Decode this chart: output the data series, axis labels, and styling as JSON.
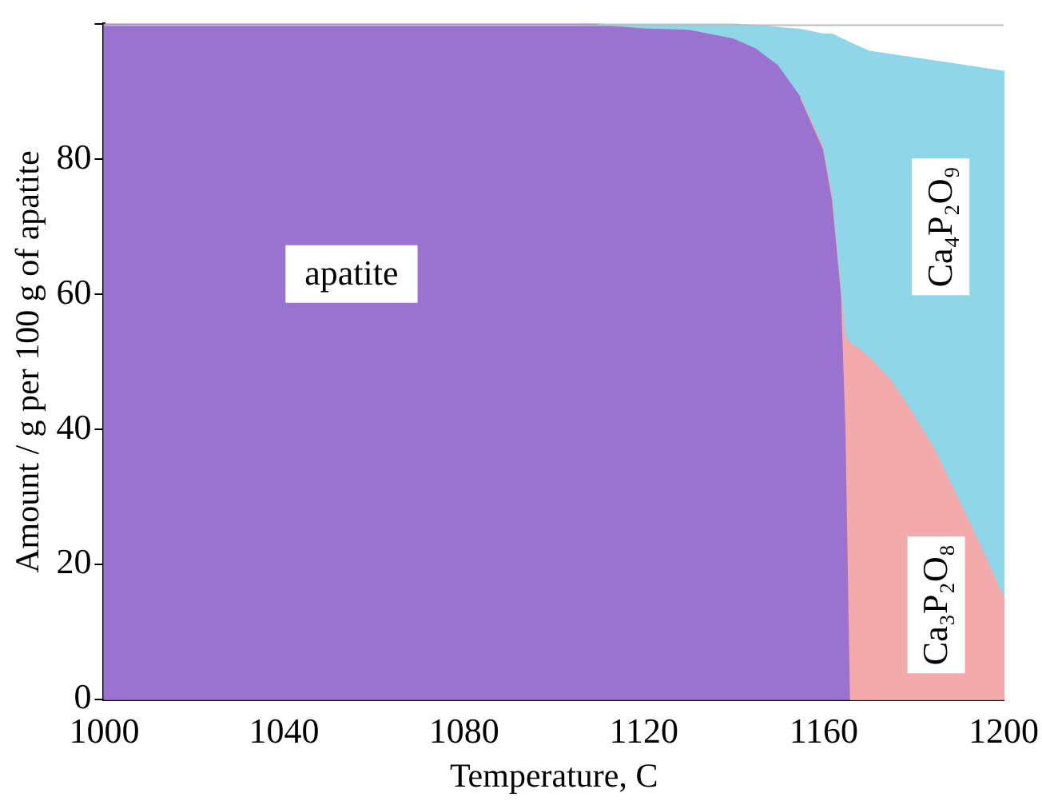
{
  "chart_data": {
    "type": "area",
    "stacked": true,
    "xlabel": "Temperature, C",
    "ylabel": "Amount / g per 100 g of apatite",
    "x": [
      1000,
      1020,
      1040,
      1060,
      1080,
      1100,
      1110,
      1120,
      1130,
      1140,
      1145,
      1150,
      1155,
      1160,
      1162,
      1164,
      1165,
      1166,
      1170,
      1175,
      1180,
      1185,
      1190,
      1195,
      1200
    ],
    "xlim": [
      1000,
      1200
    ],
    "xticks": [
      1000,
      1040,
      1080,
      1120,
      1160,
      1200
    ],
    "ylim": [
      0,
      100
    ],
    "yticks": [
      0,
      20,
      40,
      60,
      80,
      {
        "value": 100,
        "label": null
      }
    ],
    "grid": false,
    "legend": false,
    "series": [
      {
        "name": "apatite",
        "color": "#9a72cf",
        "values": [
          100,
          100,
          100,
          100,
          100,
          100,
          100,
          99.5,
          99.3,
          98,
          96.5,
          94,
          89,
          81.5,
          74,
          60,
          40,
          0,
          0,
          0,
          0,
          0,
          0,
          0,
          0
        ]
      },
      {
        "name": "Ca₃P₂O₈",
        "color": "#f3aaaa",
        "values": [
          null,
          null,
          null,
          null,
          null,
          null,
          null,
          null,
          null,
          null,
          null,
          null,
          0.3,
          0.5,
          1,
          1,
          14,
          53,
          51,
          47.5,
          42.5,
          37,
          30,
          23,
          15.5
        ]
      },
      {
        "name": "Ca₄P₂O₉",
        "color": "#8fd6e8",
        "values": [
          null,
          null,
          null,
          null,
          null,
          null,
          0,
          0.5,
          0.7,
          2,
          3.3,
          5.5,
          9.9,
          16.5,
          23.5,
          36.8,
          43.5,
          44.2,
          45,
          48,
          52.5,
          57.5,
          64,
          70.5,
          77.5
        ]
      }
    ]
  }
}
